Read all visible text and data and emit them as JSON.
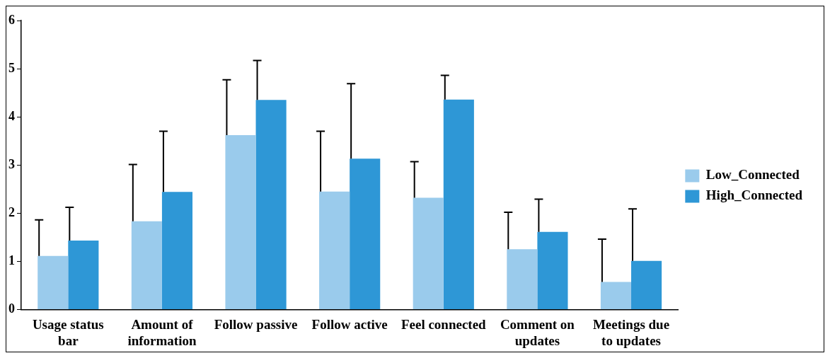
{
  "chart_data": {
    "type": "bar",
    "categories": [
      "Usage status bar",
      "Amount of information",
      "Follow passive",
      "Follow active",
      "Feel connected",
      "Comment on updates",
      "Meetings due to updates"
    ],
    "series": [
      {
        "name": "Low_Connected",
        "color": "#9acbec",
        "values": [
          1.11,
          1.83,
          3.62,
          2.45,
          2.32,
          1.25,
          0.57
        ],
        "errors": [
          [
            1.11,
            1.86
          ],
          [
            1.83,
            3.01
          ],
          [
            3.62,
            4.77
          ],
          [
            2.45,
            3.7
          ],
          [
            2.32,
            3.07
          ],
          [
            1.25,
            2.02
          ],
          [
            0.57,
            1.46
          ]
        ]
      },
      {
        "name": "High_Connected",
        "color": "#2e97d6",
        "values": [
          1.43,
          2.44,
          4.35,
          3.13,
          4.36,
          1.61,
          1.01
        ],
        "errors": [
          [
            1.43,
            2.12
          ],
          [
            2.44,
            3.7
          ],
          [
            4.35,
            5.17
          ],
          [
            3.13,
            4.69
          ],
          [
            4.36,
            4.86
          ],
          [
            1.61,
            2.29
          ],
          [
            1.01,
            2.09
          ]
        ]
      }
    ],
    "ylim": [
      0,
      6
    ],
    "yticks": [
      0,
      1,
      2,
      3,
      4,
      5,
      6
    ],
    "grid": false,
    "legend": "right"
  }
}
